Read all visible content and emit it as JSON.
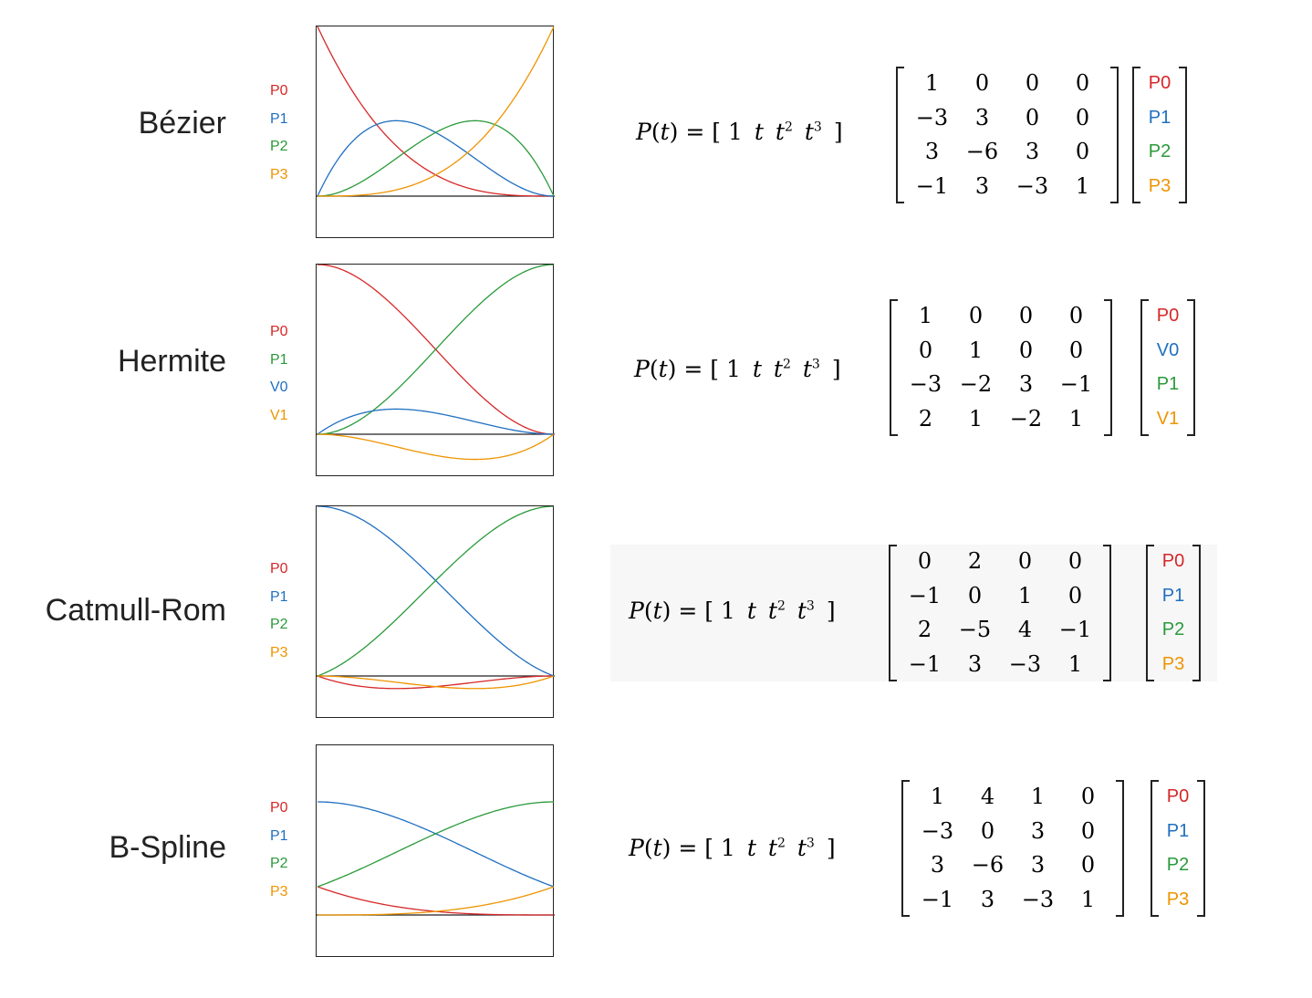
{
  "colors": {
    "red": "#d62728",
    "blue": "#1f6fc0",
    "green": "#2a9a3a",
    "orange": "#ee9400"
  },
  "lhs": {
    "func": "P",
    "var": "t",
    "eq": "=",
    "row": [
      "1",
      "t",
      "t",
      "t"
    ],
    "exps": [
      "",
      "",
      "2",
      "3"
    ]
  },
  "rows": [
    {
      "name": "Bézier",
      "legend": [
        {
          "label": "P0",
          "color": "red"
        },
        {
          "label": "P1",
          "color": "blue"
        },
        {
          "label": "P2",
          "color": "green"
        },
        {
          "label": "P3",
          "color": "orange"
        }
      ],
      "basis": "bezier",
      "matrix": [
        [
          "1",
          "0",
          "0",
          "0"
        ],
        [
          "−3",
          "3",
          "0",
          "0"
        ],
        [
          "3",
          "−6",
          "3",
          "0"
        ],
        [
          "−1",
          "3",
          "−3",
          "1"
        ]
      ],
      "vector": [
        {
          "label": "P0",
          "color": "red"
        },
        {
          "label": "P1",
          "color": "blue"
        },
        {
          "label": "P2",
          "color": "green"
        },
        {
          "label": "P3",
          "color": "orange"
        }
      ]
    },
    {
      "name": "Hermite",
      "legend": [
        {
          "label": "P0",
          "color": "red"
        },
        {
          "label": "P1",
          "color": "green"
        },
        {
          "label": "V0",
          "color": "blue"
        },
        {
          "label": "V1",
          "color": "orange"
        }
      ],
      "basis": "hermite",
      "matrix": [
        [
          "1",
          "0",
          "0",
          "0"
        ],
        [
          "0",
          "1",
          "0",
          "0"
        ],
        [
          "−3",
          "−2",
          "3",
          "−1"
        ],
        [
          "2",
          "1",
          "−2",
          "1"
        ]
      ],
      "vector": [
        {
          "label": "P0",
          "color": "red"
        },
        {
          "label": "V0",
          "color": "blue"
        },
        {
          "label": "P1",
          "color": "green"
        },
        {
          "label": "V1",
          "color": "orange"
        }
      ]
    },
    {
      "name": "Catmull-Rom",
      "legend": [
        {
          "label": "P0",
          "color": "red"
        },
        {
          "label": "P1",
          "color": "blue"
        },
        {
          "label": "P2",
          "color": "green"
        },
        {
          "label": "P3",
          "color": "orange"
        }
      ],
      "basis": "catmull",
      "matrix": [
        [
          "0",
          "2",
          "0",
          "0"
        ],
        [
          "−1",
          "0",
          "1",
          "0"
        ],
        [
          "2",
          "−5",
          "4",
          "−1"
        ],
        [
          "−1",
          "3",
          "−3",
          "1"
        ]
      ],
      "vector": [
        {
          "label": "P0",
          "color": "red"
        },
        {
          "label": "P1",
          "color": "blue"
        },
        {
          "label": "P2",
          "color": "green"
        },
        {
          "label": "P3",
          "color": "orange"
        }
      ]
    },
    {
      "name": "B-Spline",
      "legend": [
        {
          "label": "P0",
          "color": "red"
        },
        {
          "label": "P1",
          "color": "blue"
        },
        {
          "label": "P2",
          "color": "green"
        },
        {
          "label": "P3",
          "color": "orange"
        }
      ],
      "basis": "bspline",
      "matrix": [
        [
          "1",
          "4",
          "1",
          "0"
        ],
        [
          "−3",
          "0",
          "3",
          "0"
        ],
        [
          "3",
          "−6",
          "3",
          "0"
        ],
        [
          "−1",
          "3",
          "−3",
          "1"
        ]
      ],
      "vector": [
        {
          "label": "P0",
          "color": "red"
        },
        {
          "label": "P1",
          "color": "blue"
        },
        {
          "label": "P2",
          "color": "green"
        },
        {
          "label": "P3",
          "color": "orange"
        }
      ]
    }
  ]
}
